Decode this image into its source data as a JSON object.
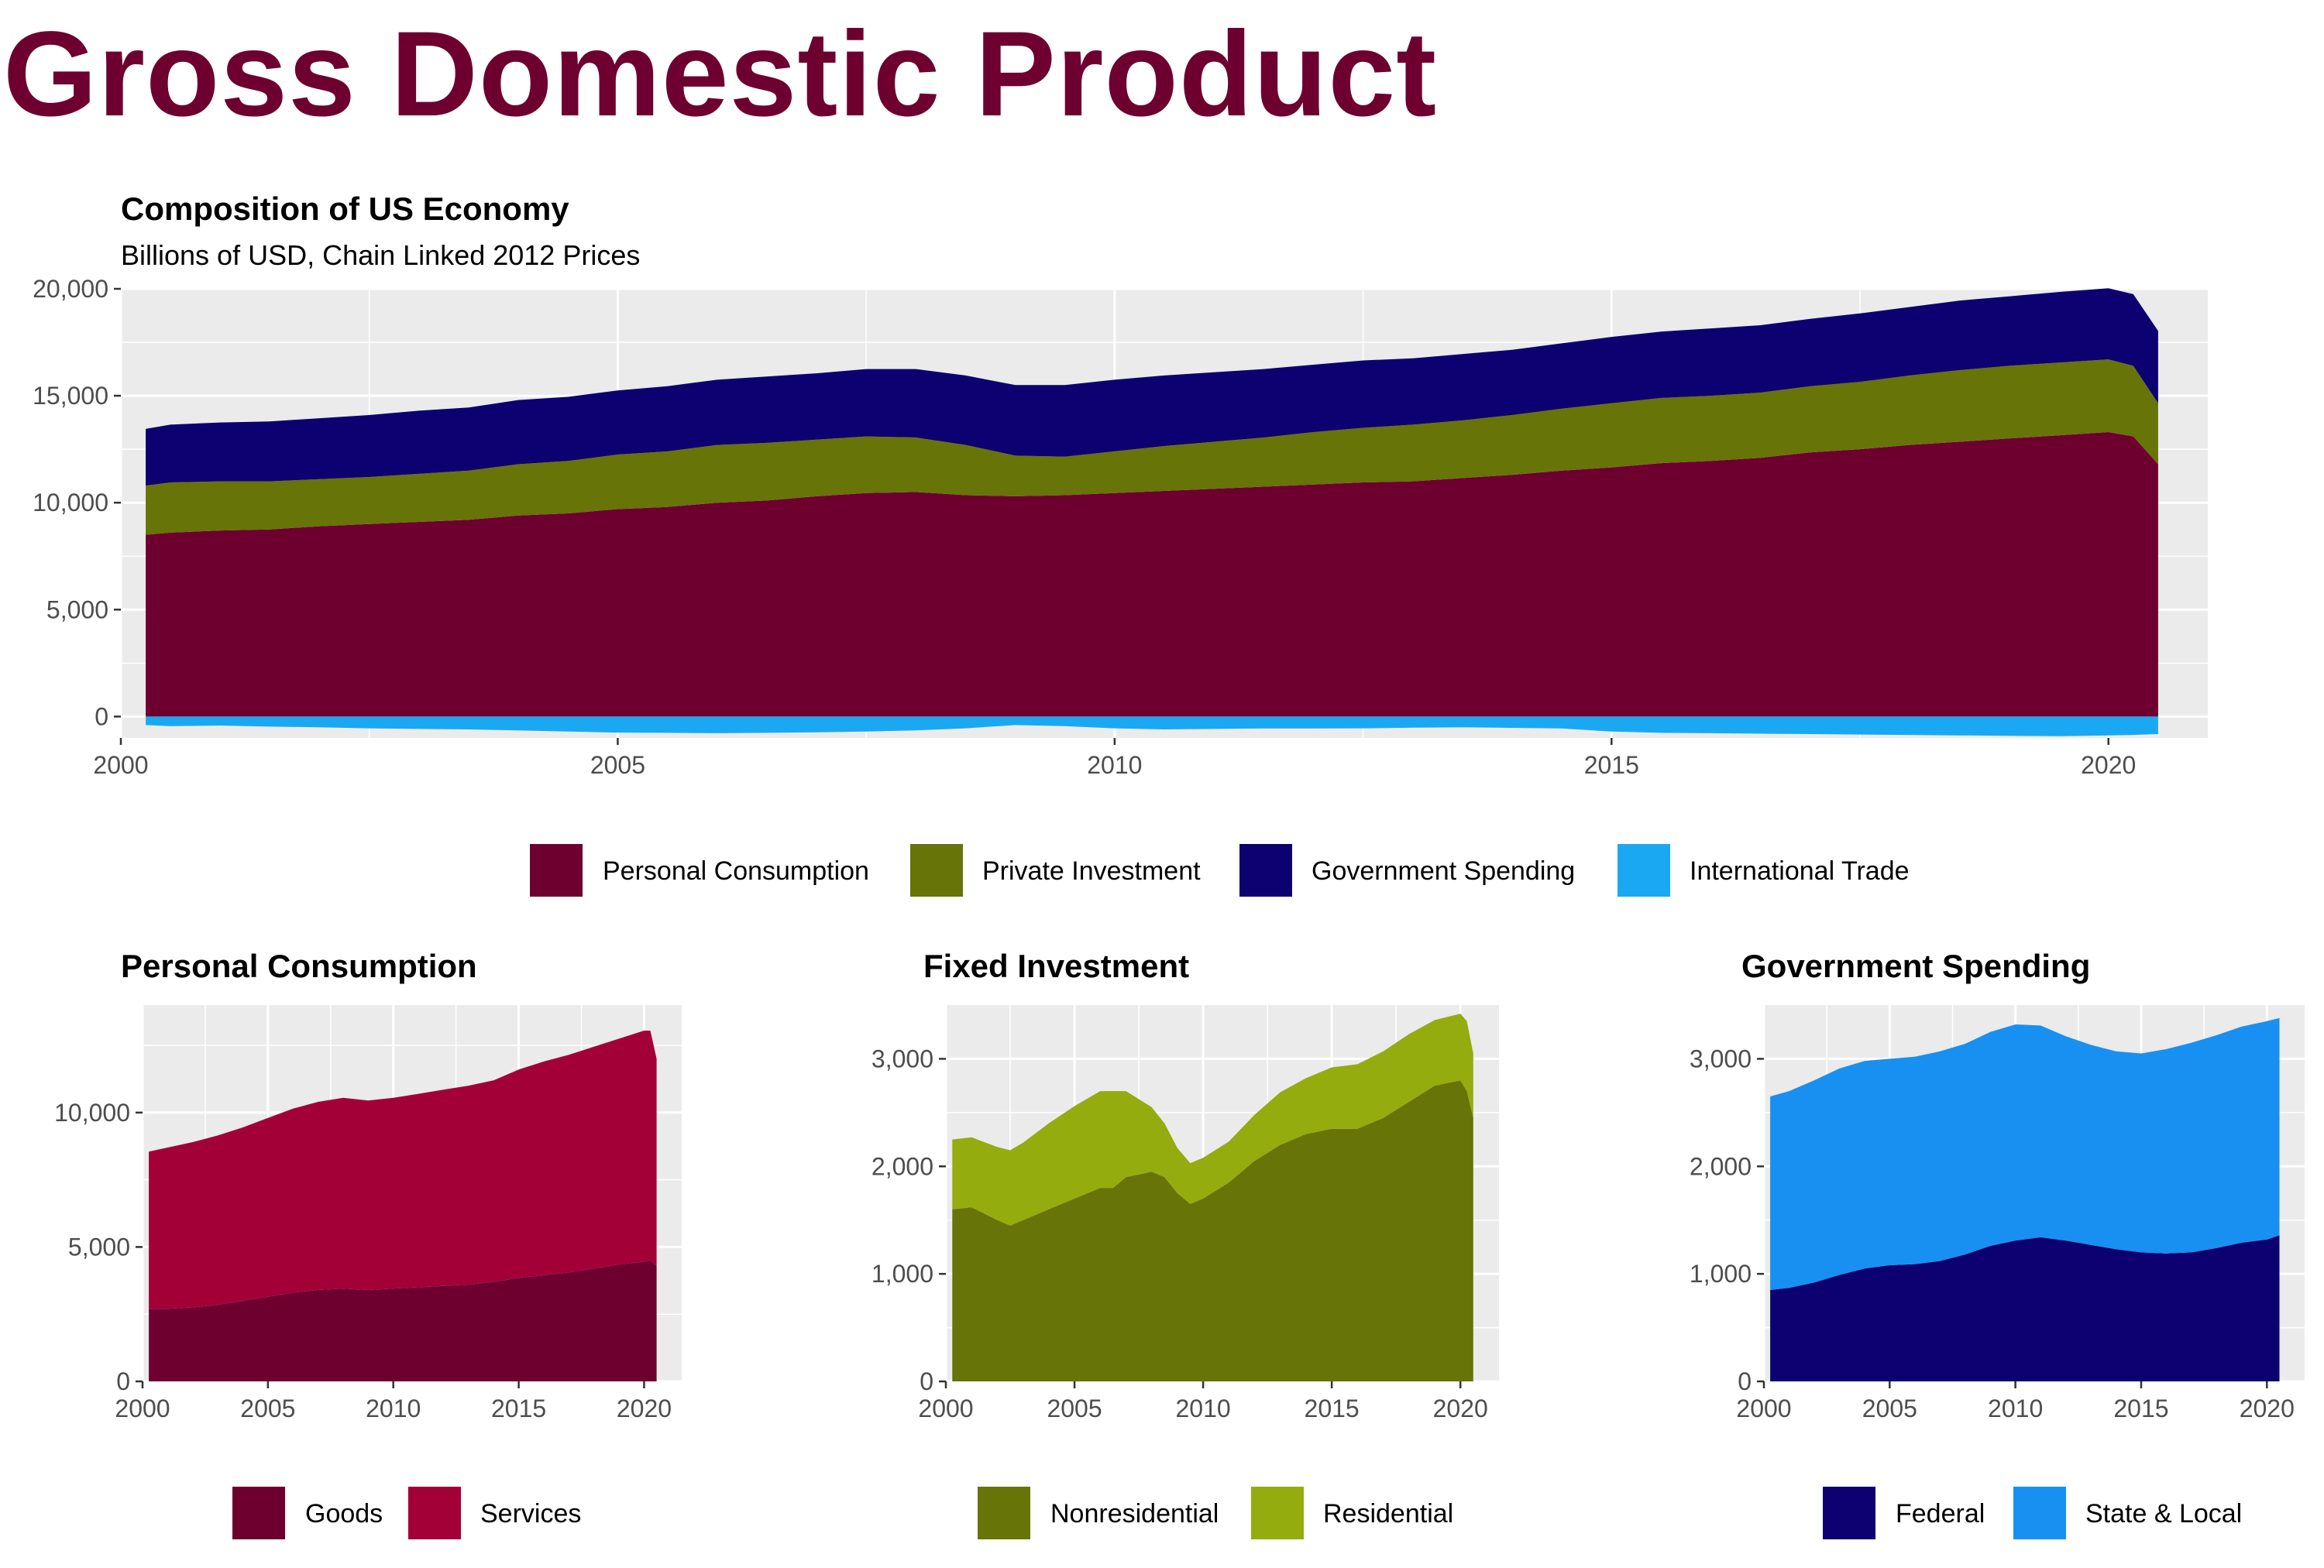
{
  "page": {
    "title": "Gross Domestic Product"
  },
  "colors": {
    "Personal Consumption": "#6E0030",
    "Private Investment": "#667408",
    "Government Spending": "#0D0070",
    "International Trade": "#1BA8F2",
    "Goods": "#6E0030",
    "Services": "#A30038",
    "Nonresidential": "#667408",
    "Residential": "#94AC0E",
    "Federal": "#0D0070",
    "State & Local": "#1790F2"
  },
  "chart_data": [
    {
      "type": "area",
      "title": "Composition of US Economy",
      "subtitle": "Billions of USD, Chain Linked 2012 Prices",
      "x": [
        2000.25,
        2000.5,
        2001,
        2001.5,
        2002,
        2002.5,
        2003,
        2003.5,
        2004,
        2004.5,
        2005,
        2005.5,
        2006,
        2006.5,
        2007,
        2007.5,
        2008,
        2008.5,
        2009,
        2009.5,
        2010,
        2010.5,
        2011,
        2011.5,
        2012,
        2012.5,
        2013,
        2013.5,
        2014,
        2014.5,
        2015,
        2015.5,
        2016,
        2016.5,
        2017,
        2017.5,
        2018,
        2018.5,
        2019,
        2019.5,
        2020,
        2020.25,
        2020.5
      ],
      "xlim": [
        2000,
        2021
      ],
      "ylim": [
        -1000,
        20000
      ],
      "xticks": [
        "2000",
        "2005",
        "2010",
        "2015",
        "2020"
      ],
      "yticks": [
        "0",
        "5,000",
        "10,000",
        "15,000",
        "20,000"
      ],
      "stacked": true,
      "legend_position": "bottom",
      "series": [
        {
          "name": "Personal Consumption",
          "values": [
            8500,
            8600,
            8700,
            8750,
            8900,
            9000,
            9100,
            9200,
            9400,
            9500,
            9700,
            9800,
            10000,
            10100,
            10300,
            10450,
            10500,
            10350,
            10300,
            10350,
            10450,
            10550,
            10650,
            10750,
            10850,
            10950,
            11000,
            11150,
            11300,
            11500,
            11650,
            11850,
            11950,
            12100,
            12350,
            12500,
            12700,
            12850,
            13000,
            13150,
            13300,
            13100,
            11800
          ]
        },
        {
          "name": "Private Investment",
          "values": [
            2300,
            2350,
            2300,
            2250,
            2200,
            2200,
            2250,
            2300,
            2400,
            2450,
            2550,
            2600,
            2700,
            2700,
            2650,
            2650,
            2550,
            2350,
            1900,
            1800,
            1950,
            2100,
            2200,
            2300,
            2450,
            2550,
            2650,
            2700,
            2800,
            2900,
            3000,
            3050,
            3050,
            3050,
            3100,
            3150,
            3250,
            3350,
            3400,
            3400,
            3400,
            3300,
            2850
          ]
        },
        {
          "name": "Government Spending",
          "values": [
            2650,
            2700,
            2750,
            2800,
            2850,
            2900,
            2950,
            2950,
            3000,
            3000,
            3000,
            3050,
            3050,
            3100,
            3100,
            3150,
            3200,
            3250,
            3300,
            3350,
            3350,
            3300,
            3250,
            3200,
            3150,
            3150,
            3100,
            3100,
            3050,
            3050,
            3100,
            3100,
            3150,
            3150,
            3150,
            3200,
            3200,
            3250,
            3250,
            3300,
            3330,
            3350,
            3380
          ]
        },
        {
          "name": "International Trade",
          "values": [
            -400,
            -450,
            -420,
            -470,
            -500,
            -550,
            -580,
            -600,
            -650,
            -700,
            -750,
            -760,
            -780,
            -760,
            -740,
            -700,
            -650,
            -550,
            -400,
            -450,
            -550,
            -600,
            -580,
            -560,
            -560,
            -550,
            -520,
            -500,
            -530,
            -560,
            -700,
            -760,
            -780,
            -800,
            -820,
            -840,
            -860,
            -880,
            -900,
            -920,
            -880,
            -860,
            -820
          ]
        }
      ]
    },
    {
      "type": "area",
      "title": "Personal Consumption",
      "x": [
        2000.25,
        2001,
        2002,
        2003,
        2004,
        2005,
        2006,
        2007,
        2008,
        2009,
        2010,
        2011,
        2012,
        2013,
        2014,
        2015,
        2016,
        2017,
        2018,
        2019,
        2020,
        2020.25,
        2020.5
      ],
      "xlim": [
        2000,
        2021.5
      ],
      "ylim": [
        0,
        14000
      ],
      "xticks": [
        "2000",
        "2005",
        "2010",
        "2015",
        "2020"
      ],
      "yticks": [
        "0",
        "5,000",
        "10,000"
      ],
      "stacked": true,
      "legend_position": "bottom",
      "series": [
        {
          "name": "Goods",
          "values": [
            2700,
            2700,
            2750,
            2850,
            3000,
            3150,
            3300,
            3400,
            3450,
            3400,
            3450,
            3500,
            3550,
            3600,
            3700,
            3850,
            3950,
            4050,
            4200,
            4350,
            4450,
            4500,
            4300
          ]
        },
        {
          "name": "Services",
          "values": [
            5850,
            6000,
            6150,
            6300,
            6450,
            6650,
            6850,
            7000,
            7100,
            7050,
            7100,
            7200,
            7300,
            7400,
            7500,
            7750,
            7950,
            8100,
            8250,
            8400,
            8600,
            8550,
            7700
          ]
        }
      ]
    },
    {
      "type": "area",
      "title": "Fixed Investment",
      "x": [
        2000.25,
        2001,
        2002,
        2002.5,
        2003,
        2004,
        2005,
        2006,
        2006.5,
        2007,
        2008,
        2008.5,
        2009,
        2009.5,
        2010,
        2011,
        2012,
        2013,
        2014,
        2015,
        2016,
        2017,
        2018,
        2019,
        2020,
        2020.25,
        2020.5
      ],
      "xlim": [
        2000,
        2021.5
      ],
      "ylim": [
        0,
        3500
      ],
      "xticks": [
        "2000",
        "2005",
        "2010",
        "2015",
        "2020"
      ],
      "yticks": [
        "0",
        "1,000",
        "2,000",
        "3,000"
      ],
      "stacked": true,
      "legend_position": "bottom",
      "series": [
        {
          "name": "Nonresidential",
          "values": [
            1600,
            1620,
            1500,
            1450,
            1500,
            1600,
            1700,
            1800,
            1800,
            1900,
            1950,
            1900,
            1750,
            1650,
            1700,
            1850,
            2050,
            2200,
            2300,
            2350,
            2350,
            2450,
            2600,
            2750,
            2800,
            2700,
            2450
          ]
        },
        {
          "name": "Residential",
          "values": [
            650,
            650,
            680,
            700,
            720,
            800,
            860,
            900,
            900,
            800,
            600,
            500,
            420,
            380,
            380,
            380,
            430,
            490,
            520,
            570,
            600,
            620,
            630,
            610,
            620,
            650,
            600
          ]
        }
      ]
    },
    {
      "type": "area",
      "title": "Government Spending",
      "x": [
        2000.25,
        2001,
        2002,
        2003,
        2004,
        2005,
        2006,
        2007,
        2008,
        2009,
        2010,
        2011,
        2012,
        2013,
        2014,
        2015,
        2016,
        2017,
        2018,
        2019,
        2020,
        2020.5
      ],
      "xlim": [
        2000,
        2021.5
      ],
      "ylim": [
        0,
        3500
      ],
      "xticks": [
        "2000",
        "2005",
        "2010",
        "2015",
        "2020"
      ],
      "yticks": [
        "0",
        "1,000",
        "2,000",
        "3,000"
      ],
      "stacked": true,
      "legend_position": "bottom",
      "series": [
        {
          "name": "Federal",
          "values": [
            850,
            870,
            920,
            990,
            1050,
            1080,
            1090,
            1120,
            1180,
            1260,
            1310,
            1340,
            1310,
            1270,
            1230,
            1200,
            1190,
            1200,
            1240,
            1290,
            1320,
            1360
          ]
        },
        {
          "name": "State & Local",
          "values": [
            1800,
            1830,
            1880,
            1920,
            1930,
            1920,
            1930,
            1950,
            1960,
            1990,
            2010,
            1970,
            1900,
            1860,
            1840,
            1850,
            1900,
            1950,
            1980,
            2010,
            2030,
            2020
          ]
        }
      ]
    }
  ]
}
